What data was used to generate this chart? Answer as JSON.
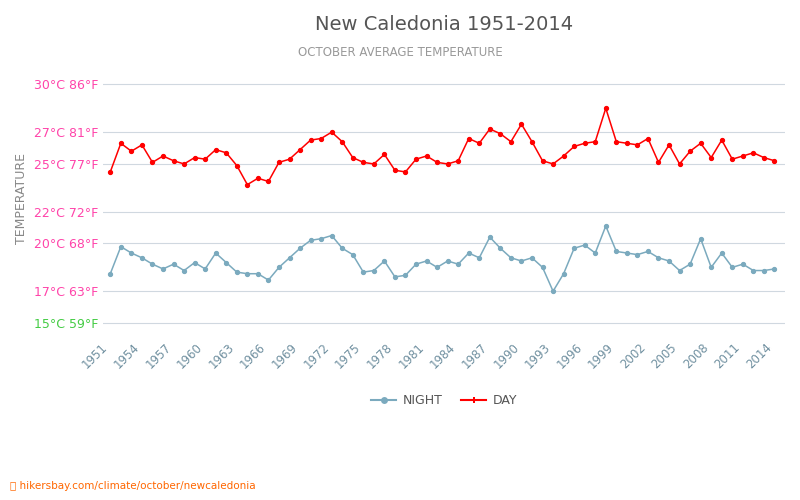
{
  "title": "New Caledonia 1951-2014",
  "subtitle": "OCTOBER AVERAGE TEMPERATURE",
  "ylabel": "TEMPERATURE",
  "xlabel_url": "hikersbay.com/climate/october/newcaledonia",
  "years": [
    1951,
    1952,
    1953,
    1954,
    1955,
    1956,
    1957,
    1958,
    1959,
    1960,
    1961,
    1962,
    1963,
    1964,
    1965,
    1966,
    1967,
    1968,
    1969,
    1970,
    1971,
    1972,
    1973,
    1974,
    1975,
    1976,
    1977,
    1978,
    1979,
    1980,
    1981,
    1982,
    1983,
    1984,
    1985,
    1986,
    1987,
    1988,
    1989,
    1990,
    1991,
    1992,
    1993,
    1994,
    1995,
    1996,
    1997,
    1998,
    1999,
    2000,
    2001,
    2002,
    2003,
    2004,
    2005,
    2006,
    2007,
    2008,
    2009,
    2010,
    2011,
    2012,
    2013,
    2014
  ],
  "day_temps": [
    24.5,
    26.3,
    25.8,
    26.2,
    25.1,
    25.5,
    25.2,
    25.0,
    25.4,
    25.3,
    25.9,
    25.7,
    24.9,
    23.7,
    24.1,
    23.9,
    25.1,
    25.3,
    25.9,
    26.5,
    26.6,
    27.0,
    26.4,
    25.4,
    25.1,
    25.0,
    25.6,
    24.6,
    24.5,
    25.3,
    25.5,
    25.1,
    25.0,
    25.2,
    26.6,
    26.3,
    27.2,
    26.9,
    26.4,
    27.5,
    26.4,
    25.2,
    25.0,
    25.5,
    26.1,
    26.3,
    26.4,
    28.5,
    26.4,
    26.3,
    26.2,
    26.6,
    25.1,
    26.2,
    25.0,
    25.8,
    26.3,
    25.4,
    26.5,
    25.3,
    25.5,
    25.7,
    25.4,
    25.2
  ],
  "night_temps": [
    18.1,
    19.8,
    19.4,
    19.1,
    18.7,
    18.4,
    18.7,
    18.3,
    18.8,
    18.4,
    19.4,
    18.8,
    18.2,
    18.1,
    18.1,
    17.7,
    18.5,
    19.1,
    19.7,
    20.2,
    20.3,
    20.5,
    19.7,
    19.3,
    18.2,
    18.3,
    18.9,
    17.9,
    18.0,
    18.7,
    18.9,
    18.5,
    18.9,
    18.7,
    19.4,
    19.1,
    20.4,
    19.7,
    19.1,
    18.9,
    19.1,
    18.5,
    17.0,
    18.1,
    19.7,
    19.9,
    19.4,
    21.1,
    19.5,
    19.4,
    19.3,
    19.5,
    19.1,
    18.9,
    18.3,
    18.7,
    20.3,
    18.5,
    19.4,
    18.5,
    18.7,
    18.3,
    18.3,
    18.4
  ],
  "day_color": "#ff0000",
  "night_color": "#7baabe",
  "grid_color": "#d0d8e0",
  "background_color": "#ffffff",
  "title_color": "#555555",
  "subtitle_color": "#999999",
  "label_color_pink": "#ff44aa",
  "label_color_green": "#44cc44",
  "xtick_color": "#7090a0",
  "url_color": "#ff6600",
  "yticks_celsius": [
    15,
    17,
    20,
    22,
    25,
    27,
    30
  ],
  "yticks_fahrenheit": [
    59,
    63,
    68,
    72,
    77,
    81,
    86
  ],
  "ylim": [
    14.2,
    31.5
  ],
  "xlim": [
    1950.3,
    2015.0
  ],
  "xtick_years": [
    1951,
    1954,
    1957,
    1960,
    1963,
    1966,
    1969,
    1972,
    1975,
    1978,
    1981,
    1984,
    1987,
    1990,
    1993,
    1996,
    1999,
    2002,
    2005,
    2008,
    2011,
    2014
  ]
}
